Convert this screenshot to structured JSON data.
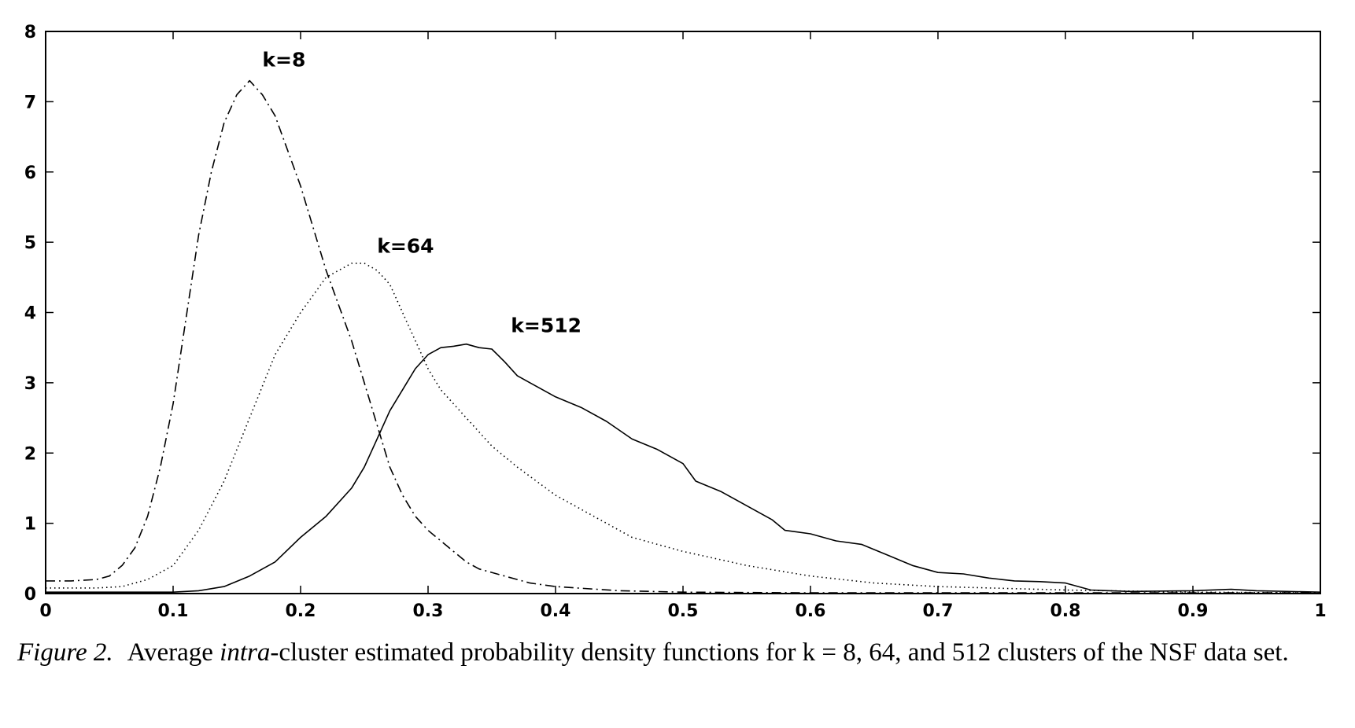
{
  "chart_data": {
    "type": "line",
    "title": "",
    "xlabel": "",
    "ylabel": "",
    "xlim": [
      0,
      1
    ],
    "ylim": [
      0,
      8
    ],
    "xticks": [
      0,
      0.1,
      0.2,
      0.3,
      0.4,
      0.5,
      0.6,
      0.7,
      0.8,
      0.9,
      1
    ],
    "xtick_labels": [
      "0",
      "0.1",
      "0.2",
      "0.3",
      "0.4",
      "0.5",
      "0.6",
      "0.7",
      "0.8",
      "0.9",
      "1"
    ],
    "yticks": [
      0,
      1,
      2,
      3,
      4,
      5,
      6,
      7,
      8
    ],
    "ytick_labels": [
      "0",
      "1",
      "2",
      "3",
      "4",
      "5",
      "6",
      "7",
      "8"
    ],
    "grid": false,
    "series": [
      {
        "name": "k=8",
        "style": "dash-dot",
        "label_at": [
          0.17,
          7.5
        ],
        "points": [
          [
            0,
            0.18
          ],
          [
            0.02,
            0.18
          ],
          [
            0.04,
            0.2
          ],
          [
            0.05,
            0.25
          ],
          [
            0.06,
            0.4
          ],
          [
            0.07,
            0.65
          ],
          [
            0.08,
            1.1
          ],
          [
            0.09,
            1.8
          ],
          [
            0.1,
            2.7
          ],
          [
            0.11,
            3.9
          ],
          [
            0.12,
            5.1
          ],
          [
            0.13,
            6.0
          ],
          [
            0.14,
            6.7
          ],
          [
            0.15,
            7.1
          ],
          [
            0.16,
            7.3
          ],
          [
            0.17,
            7.1
          ],
          [
            0.18,
            6.8
          ],
          [
            0.19,
            6.3
          ],
          [
            0.2,
            5.8
          ],
          [
            0.21,
            5.2
          ],
          [
            0.22,
            4.6
          ],
          [
            0.23,
            4.1
          ],
          [
            0.24,
            3.6
          ],
          [
            0.25,
            3.0
          ],
          [
            0.26,
            2.4
          ],
          [
            0.27,
            1.8
          ],
          [
            0.28,
            1.4
          ],
          [
            0.29,
            1.1
          ],
          [
            0.3,
            0.9
          ],
          [
            0.32,
            0.6
          ],
          [
            0.33,
            0.45
          ],
          [
            0.34,
            0.35
          ],
          [
            0.36,
            0.25
          ],
          [
            0.38,
            0.15
          ],
          [
            0.4,
            0.1
          ],
          [
            0.45,
            0.04
          ],
          [
            0.5,
            0.02
          ],
          [
            0.6,
            0.01
          ],
          [
            0.8,
            0.01
          ],
          [
            1,
            0.01
          ]
        ]
      },
      {
        "name": "k=64",
        "style": "dotted",
        "label_at": [
          0.26,
          4.85
        ],
        "points": [
          [
            0,
            0.08
          ],
          [
            0.04,
            0.08
          ],
          [
            0.06,
            0.1
          ],
          [
            0.08,
            0.2
          ],
          [
            0.1,
            0.4
          ],
          [
            0.12,
            0.9
          ],
          [
            0.14,
            1.6
          ],
          [
            0.16,
            2.5
          ],
          [
            0.18,
            3.4
          ],
          [
            0.2,
            4.0
          ],
          [
            0.22,
            4.5
          ],
          [
            0.24,
            4.7
          ],
          [
            0.25,
            4.7
          ],
          [
            0.26,
            4.6
          ],
          [
            0.27,
            4.4
          ],
          [
            0.28,
            4.0
          ],
          [
            0.29,
            3.6
          ],
          [
            0.3,
            3.2
          ],
          [
            0.31,
            2.9
          ],
          [
            0.32,
            2.7
          ],
          [
            0.33,
            2.5
          ],
          [
            0.35,
            2.1
          ],
          [
            0.37,
            1.8
          ],
          [
            0.4,
            1.4
          ],
          [
            0.43,
            1.1
          ],
          [
            0.46,
            0.8
          ],
          [
            0.5,
            0.6
          ],
          [
            0.55,
            0.4
          ],
          [
            0.6,
            0.25
          ],
          [
            0.65,
            0.15
          ],
          [
            0.7,
            0.1
          ],
          [
            0.8,
            0.05
          ],
          [
            0.9,
            0.02
          ],
          [
            1,
            0.01
          ]
        ]
      },
      {
        "name": "k=512",
        "style": "solid",
        "label_at": [
          0.365,
          3.72
        ],
        "points": [
          [
            0,
            0.02
          ],
          [
            0.1,
            0.02
          ],
          [
            0.12,
            0.04
          ],
          [
            0.14,
            0.1
          ],
          [
            0.16,
            0.25
          ],
          [
            0.18,
            0.45
          ],
          [
            0.2,
            0.8
          ],
          [
            0.22,
            1.1
          ],
          [
            0.24,
            1.5
          ],
          [
            0.25,
            1.8
          ],
          [
            0.26,
            2.2
          ],
          [
            0.27,
            2.6
          ],
          [
            0.28,
            2.9
          ],
          [
            0.29,
            3.2
          ],
          [
            0.3,
            3.4
          ],
          [
            0.31,
            3.5
          ],
          [
            0.32,
            3.52
          ],
          [
            0.33,
            3.55
          ],
          [
            0.34,
            3.5
          ],
          [
            0.35,
            3.48
          ],
          [
            0.36,
            3.3
          ],
          [
            0.37,
            3.1
          ],
          [
            0.38,
            3.0
          ],
          [
            0.4,
            2.8
          ],
          [
            0.42,
            2.65
          ],
          [
            0.44,
            2.45
          ],
          [
            0.46,
            2.2
          ],
          [
            0.48,
            2.05
          ],
          [
            0.5,
            1.85
          ],
          [
            0.51,
            1.6
          ],
          [
            0.53,
            1.45
          ],
          [
            0.55,
            1.25
          ],
          [
            0.57,
            1.05
          ],
          [
            0.58,
            0.9
          ],
          [
            0.6,
            0.85
          ],
          [
            0.62,
            0.75
          ],
          [
            0.64,
            0.7
          ],
          [
            0.66,
            0.55
          ],
          [
            0.68,
            0.4
          ],
          [
            0.7,
            0.3
          ],
          [
            0.72,
            0.28
          ],
          [
            0.74,
            0.22
          ],
          [
            0.76,
            0.18
          ],
          [
            0.78,
            0.17
          ],
          [
            0.8,
            0.15
          ],
          [
            0.82,
            0.05
          ],
          [
            0.85,
            0.03
          ],
          [
            0.9,
            0.04
          ],
          [
            0.93,
            0.06
          ],
          [
            0.95,
            0.04
          ],
          [
            1,
            0.02
          ]
        ]
      }
    ]
  },
  "caption": {
    "label": "Figure 2.",
    "text_part1": "Average ",
    "text_em": "intra",
    "text_part2": "-cluster estimated probability density functions for k = 8, 64, and 512 clusters of the NSF data set."
  }
}
